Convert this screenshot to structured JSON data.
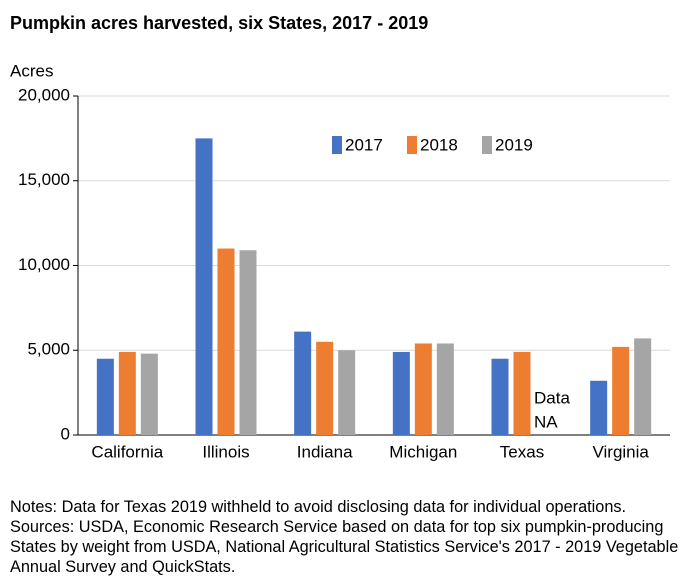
{
  "chart_data": {
    "type": "bar",
    "title": "Pumpkin acres harvested, six States, 2017 - 2019",
    "y_label": "Acres",
    "categories": [
      "California",
      "Illinois",
      "Indiana",
      "Michigan",
      "Texas",
      "Virginia"
    ],
    "series": [
      {
        "name": "2017",
        "color": "#4472c4",
        "values": [
          4500,
          17500,
          6100,
          4900,
          4500,
          3200
        ]
      },
      {
        "name": "2018",
        "color": "#ed7d31",
        "values": [
          4900,
          11000,
          5500,
          5400,
          4900,
          5200
        ]
      },
      {
        "name": "2019",
        "color": "#a5a5a5",
        "values": [
          4800,
          10900,
          5000,
          5400,
          null,
          5700
        ]
      }
    ],
    "annotation_lines": [
      "Data",
      "NA"
    ],
    "ylim": [
      0,
      20000
    ],
    "yticks": [
      0,
      {
        "value": 5000,
        "label": "5,000"
      },
      {
        "value": 10000,
        "label": "10,000"
      },
      {
        "value": 15000,
        "label": "15,000"
      },
      {
        "value": 20000,
        "label": "20,000"
      }
    ],
    "grid": true,
    "notes": "Notes: Data for Texas 2019 withheld to avoid disclosing data for individual operations.",
    "sources": "Sources: USDA, Economic Research Service based on data for top six pumpkin-producing States by weight from USDA, National Agricultural Statistics Service's 2017 - 2019 Vegetable Annual Survey and QuickStats."
  }
}
